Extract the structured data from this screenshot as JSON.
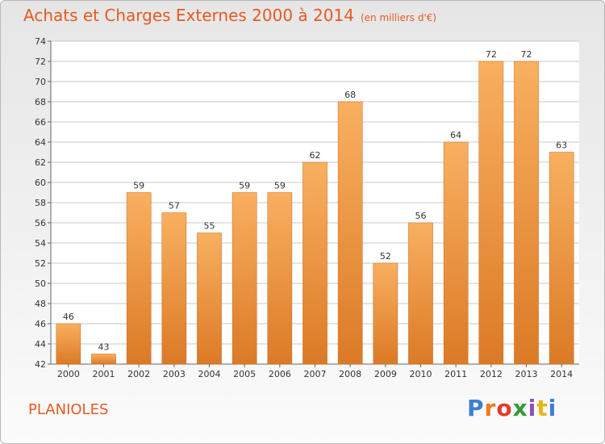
{
  "header": {
    "title": "Achats et Charges Externes 2000 à 2014",
    "unit": "(en milliers d'€)"
  },
  "footer": {
    "place": "PLANIOLES",
    "brand": "Proxiti",
    "brand_colors": [
      "#3b7fd4",
      "#ee7b1c",
      "#e23c2c",
      "#2f9e3a",
      "#8a4fbf",
      "#e8b617",
      "#3b7fd4"
    ]
  },
  "colors": {
    "title": "#e55a22",
    "bar_top": "#f8b060",
    "bar_bottom": "#dc7a26",
    "grid": "#c8c8c8"
  },
  "chart_data": {
    "type": "bar",
    "categories": [
      "2000",
      "2001",
      "2002",
      "2003",
      "2004",
      "2005",
      "2006",
      "2007",
      "2008",
      "2009",
      "2010",
      "2011",
      "2012",
      "2013",
      "2014"
    ],
    "values": [
      46,
      43,
      59,
      57,
      55,
      59,
      59,
      62,
      68,
      52,
      56,
      64,
      72,
      72,
      63
    ],
    "title": "Achats et Charges Externes 2000 à 2014",
    "xlabel": "",
    "ylabel": "",
    "ylim": [
      42,
      74
    ],
    "yticks": [
      42,
      44,
      46,
      48,
      50,
      52,
      54,
      56,
      58,
      60,
      62,
      64,
      66,
      68,
      70,
      72,
      74
    ],
    "grid": true,
    "legend": "none"
  }
}
